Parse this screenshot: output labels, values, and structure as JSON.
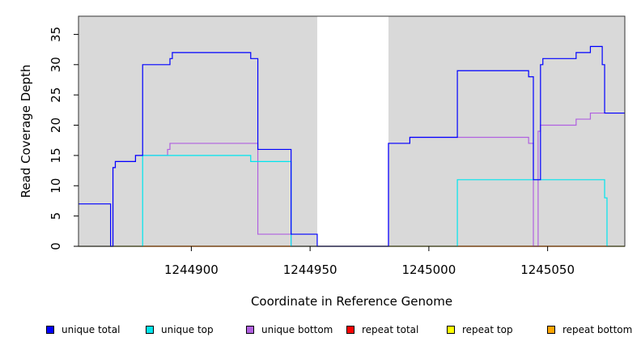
{
  "chart_data": {
    "type": "line",
    "xlabel": "Coordinate in Reference Genome",
    "ylabel": "Read Coverage Depth",
    "xlim": [
      1244852.5,
      1245082.5
    ],
    "ylim": [
      0,
      38
    ],
    "xticks": [
      1244900,
      1244950,
      1245000,
      1245050
    ],
    "xtick_labels": [
      "1244900",
      "1244950",
      "1245000",
      "1245050"
    ],
    "yticks": [
      0,
      5,
      10,
      15,
      20,
      25,
      30,
      35
    ],
    "ytick_labels": [
      "0",
      "5",
      "10",
      "15",
      "20",
      "25",
      "30",
      "35"
    ],
    "background_color": "#d9d9d9",
    "gap_region": [
      1244953,
      1244983
    ],
    "grid": false,
    "legend_position": "bottom",
    "series": [
      {
        "name": "unique total",
        "color": "#0000ff",
        "points": [
          [
            1244852.5,
            7
          ],
          [
            1244866,
            7
          ],
          [
            1244866,
            0
          ],
          [
            1244867,
            0
          ],
          [
            1244867,
            13
          ],
          [
            1244868,
            13
          ],
          [
            1244868,
            14
          ],
          [
            1244876.5,
            14
          ],
          [
            1244876.5,
            15
          ],
          [
            1244879.5,
            15
          ],
          [
            1244879.5,
            30
          ],
          [
            1244891,
            30
          ],
          [
            1244891,
            31
          ],
          [
            1244892,
            31
          ],
          [
            1244892,
            32
          ],
          [
            1244925,
            32
          ],
          [
            1244925,
            31
          ],
          [
            1244928,
            31
          ],
          [
            1244928,
            16
          ],
          [
            1244942,
            16
          ],
          [
            1244942,
            2
          ],
          [
            1244953,
            2
          ],
          [
            1244953,
            0
          ],
          [
            1244983,
            0
          ],
          [
            1244983,
            17
          ],
          [
            1244992,
            17
          ],
          [
            1244992,
            18
          ],
          [
            1245012,
            18
          ],
          [
            1245012,
            29
          ],
          [
            1245042,
            29
          ],
          [
            1245042,
            28
          ],
          [
            1245044,
            28
          ],
          [
            1245044,
            11
          ],
          [
            1245047,
            11
          ],
          [
            1245047,
            30
          ],
          [
            1245048,
            30
          ],
          [
            1245048,
            31
          ],
          [
            1245062,
            31
          ],
          [
            1245062,
            32
          ],
          [
            1245068,
            32
          ],
          [
            1245068,
            33
          ],
          [
            1245073,
            33
          ],
          [
            1245073,
            30
          ],
          [
            1245074,
            30
          ],
          [
            1245074,
            22
          ],
          [
            1245082.5,
            22
          ]
        ]
      },
      {
        "name": "unique top",
        "color": "#00e5ee",
        "points": [
          [
            1244852.5,
            0
          ],
          [
            1244879.5,
            0
          ],
          [
            1244879.5,
            15
          ],
          [
            1244925,
            15
          ],
          [
            1244925,
            14
          ],
          [
            1244942,
            14
          ],
          [
            1244942,
            0
          ],
          [
            1245012,
            0
          ],
          [
            1245012,
            11
          ],
          [
            1245074,
            11
          ],
          [
            1245074,
            8
          ],
          [
            1245075,
            8
          ],
          [
            1245075,
            0
          ],
          [
            1245082.5,
            0
          ]
        ]
      },
      {
        "name": "unique bottom",
        "color": "#b060e0",
        "points": [
          [
            1244852.5,
            0
          ],
          [
            1244866,
            0
          ],
          [
            1244867,
            0
          ],
          [
            1244867,
            13
          ],
          [
            1244868,
            13
          ],
          [
            1244868,
            14
          ],
          [
            1244876.5,
            14
          ],
          [
            1244876.5,
            15
          ],
          [
            1244890,
            15
          ],
          [
            1244890,
            16
          ],
          [
            1244891,
            16
          ],
          [
            1244891,
            17
          ],
          [
            1244928,
            17
          ],
          [
            1244928,
            2
          ],
          [
            1244942,
            2
          ],
          [
            1244942,
            0
          ],
          [
            1244983,
            0
          ],
          [
            1244983,
            17
          ],
          [
            1244992,
            17
          ],
          [
            1244992,
            18
          ],
          [
            1245042,
            18
          ],
          [
            1245042,
            17
          ],
          [
            1245044,
            17
          ],
          [
            1245044,
            0
          ],
          [
            1245046,
            0
          ],
          [
            1245046,
            19
          ],
          [
            1245047,
            19
          ],
          [
            1245047,
            20
          ],
          [
            1245062,
            20
          ],
          [
            1245062,
            21
          ],
          [
            1245068,
            21
          ],
          [
            1245068,
            22
          ],
          [
            1245082.5,
            22
          ]
        ]
      },
      {
        "name": "repeat total",
        "color": "#ff0000",
        "points": [
          [
            1244852.5,
            0
          ],
          [
            1245082.5,
            0
          ]
        ]
      },
      {
        "name": "repeat top",
        "color": "#ffff00",
        "points": [
          [
            1244852.5,
            0
          ],
          [
            1245082.5,
            0
          ]
        ]
      },
      {
        "name": "repeat bottom",
        "color": "#ffa500",
        "points": [
          [
            1244852.5,
            0
          ],
          [
            1245082.5,
            0
          ]
        ]
      }
    ]
  }
}
